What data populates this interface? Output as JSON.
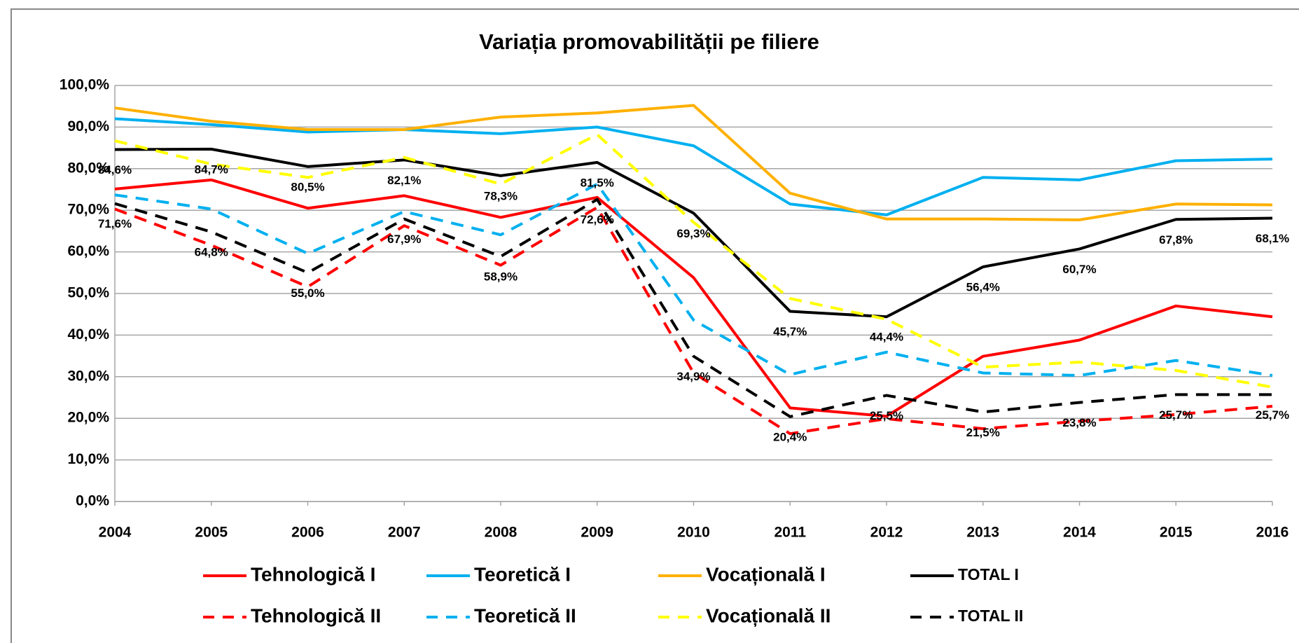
{
  "chart_data": {
    "type": "line",
    "title": "Variația promovabilității pe filiere",
    "x": [
      2004,
      2005,
      2006,
      2007,
      2008,
      2009,
      2010,
      2011,
      2012,
      2013,
      2014,
      2015,
      2016
    ],
    "xlim": [
      2004,
      2016
    ],
    "xticks": [
      2004,
      2005,
      2006,
      2007,
      2008,
      2009,
      2010,
      2011,
      2012,
      2013,
      2014,
      2015,
      2016
    ],
    "ylim": [
      0,
      100
    ],
    "yticks": [
      {
        "value": 0,
        "label": "0,0%"
      },
      {
        "value": 10,
        "label": "10,0%"
      },
      {
        "value": 20,
        "label": "20,0%"
      },
      {
        "value": 30,
        "label": "30,0%"
      },
      {
        "value": 40,
        "label": "40,0%"
      },
      {
        "value": 50,
        "label": "50,0%"
      },
      {
        "value": 60,
        "label": "60,0%"
      },
      {
        "value": 70,
        "label": "70,0%"
      },
      {
        "value": 80,
        "label": "80,0%"
      },
      {
        "value": 90,
        "label": "90,0%"
      },
      {
        "value": 100,
        "label": "100,0%"
      }
    ],
    "grid": true,
    "legend": "bottom",
    "series": [
      {
        "name": "Tehnologică I",
        "color": "#ff0000",
        "dashed": false,
        "values": [
          75.1,
          77.3,
          70.5,
          73.5,
          68.3,
          73.1,
          53.8,
          22.5,
          20.5,
          34.9,
          38.8,
          47.0,
          44.4
        ]
      },
      {
        "name": "Teoretică I",
        "color": "#00b0f0",
        "dashed": false,
        "values": [
          92.0,
          90.6,
          88.8,
          89.4,
          88.4,
          90.0,
          85.5,
          71.5,
          68.9,
          77.9,
          77.3,
          81.9,
          82.3
        ]
      },
      {
        "name": "Vocațională I",
        "color": "#ffb000",
        "dashed": false,
        "values": [
          94.6,
          91.4,
          89.4,
          89.4,
          92.4,
          93.4,
          95.2,
          74.1,
          67.9,
          67.9,
          67.7,
          71.5,
          71.3
        ]
      },
      {
        "name": "TOTAL I",
        "color": "#000000",
        "dashed": false,
        "values": [
          84.6,
          84.7,
          80.5,
          82.1,
          78.3,
          81.5,
          69.3,
          45.7,
          44.4,
          56.4,
          60.7,
          67.8,
          68.1
        ],
        "value_labels": [
          "84,6%",
          "84,7%",
          "80,5%",
          "82,1%",
          "78,3%",
          "81,5%",
          "69,3%",
          "45,7%",
          "44,4%",
          "56,4%",
          "60,7%",
          "67,8%",
          "68,1%"
        ]
      },
      {
        "name": "Tehnologică II",
        "color": "#ff0000",
        "dashed": true,
        "values": [
          70.3,
          61.6,
          51.6,
          66.3,
          56.8,
          70.7,
          30.9,
          16.3,
          19.9,
          17.5,
          19.3,
          20.9,
          22.9
        ]
      },
      {
        "name": "Teoretică II",
        "color": "#00b0f0",
        "dashed": true,
        "values": [
          73.7,
          70.3,
          59.6,
          69.7,
          64.1,
          76.3,
          43.6,
          30.5,
          35.9,
          30.9,
          30.3,
          33.9,
          30.3
        ]
      },
      {
        "name": "Vocațională II",
        "color": "#ffff00",
        "dashed": true,
        "values": [
          86.7,
          81.1,
          77.9,
          82.7,
          76.3,
          88.2,
          67.1,
          48.8,
          43.8,
          32.3,
          33.5,
          31.5,
          27.5
        ]
      },
      {
        "name": "TOTAL II",
        "color": "#000000",
        "dashed": true,
        "values": [
          71.6,
          64.8,
          55.0,
          67.9,
          58.9,
          72.6,
          34.9,
          20.4,
          25.5,
          21.5,
          23.8,
          25.7,
          25.7
        ],
        "value_labels": [
          "71,6%",
          "64,8%",
          "55,0%",
          "67,9%",
          "58,9%",
          "72,6%",
          "34,9%",
          "20,4%",
          "25,5%",
          "21,5%",
          "23,8%",
          "25,7%",
          "25,7%"
        ]
      }
    ]
  }
}
